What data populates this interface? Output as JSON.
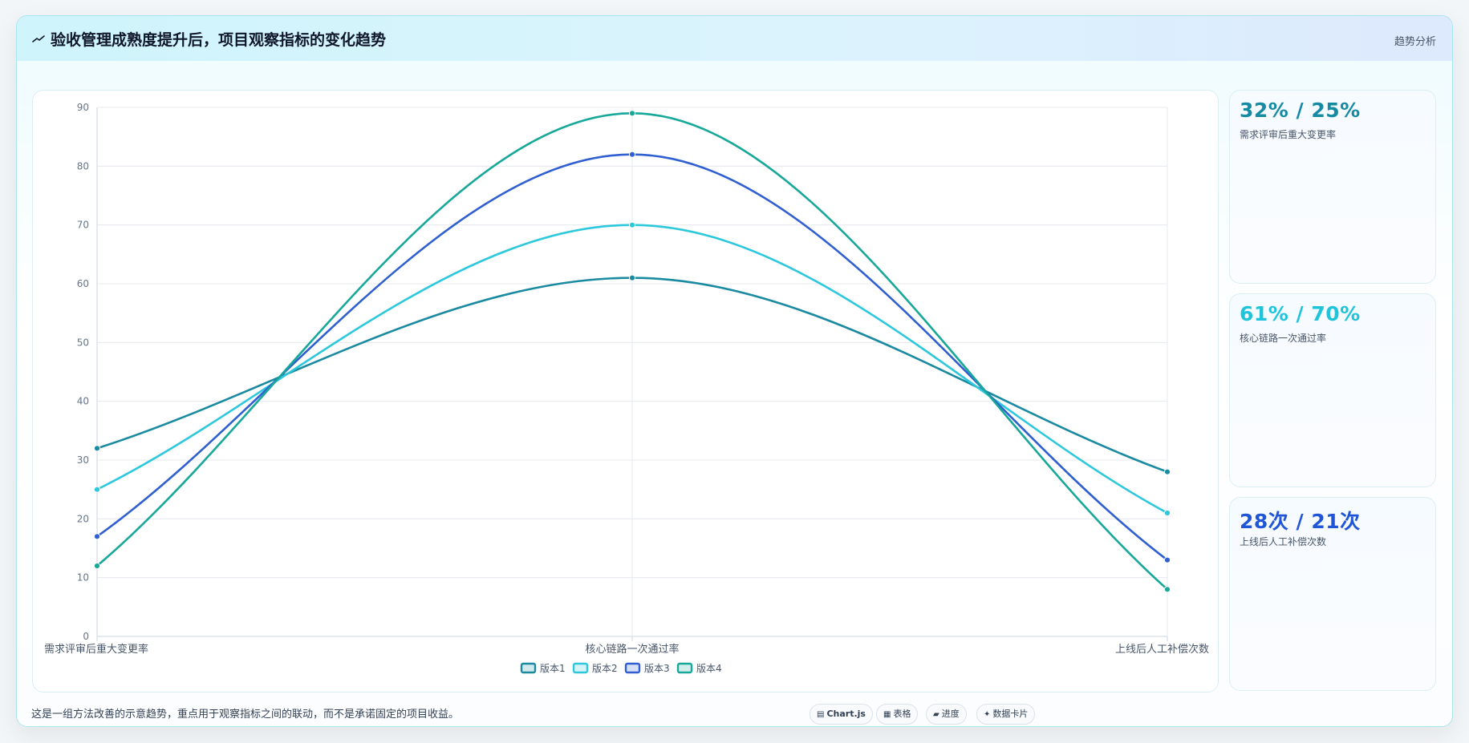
{
  "header": {
    "title": "验收管理成熟度提升后，项目观察指标的变化趋势",
    "badge": "趋势分析",
    "icon": "trend-line-icon"
  },
  "chart_data": {
    "type": "line",
    "title": "",
    "xlabel": "",
    "ylabel": "",
    "categories": [
      "需求评审后重大变更率",
      "核心链路一次通过率",
      "上线后人工补偿次数"
    ],
    "ylim": [
      0,
      90
    ],
    "yticks": [
      0,
      10,
      20,
      30,
      40,
      50,
      60,
      70,
      80,
      90
    ],
    "grid": true,
    "legend": "bottom-center",
    "smooth": true,
    "series": [
      {
        "name": "版本1",
        "values": [
          32,
          61,
          28
        ],
        "color": "#1a8aa0"
      },
      {
        "name": "版本2",
        "values": [
          25,
          70,
          21
        ],
        "color": "#2ec8dd"
      },
      {
        "name": "版本3",
        "values": [
          17,
          82,
          13
        ],
        "color": "#2f5fd0"
      },
      {
        "name": "版本4",
        "values": [
          12,
          89,
          8
        ],
        "color": "#17a89a"
      }
    ]
  },
  "stats": [
    {
      "value": "32% / 25%",
      "label": "需求评审后重大变更率",
      "color": "#158aa3"
    },
    {
      "value": "61% / 70%",
      "label": "核心链路一次通过率",
      "color": "#1fc4da"
    },
    {
      "value": "28次 / 21次",
      "label": "上线后人工补偿次数",
      "color": "#1f55d6"
    }
  ],
  "footer": {
    "note": "这是一组方法改善的示意趋势，重点用于观察指标之间的联动，而不是承诺固定的项目收益。",
    "chips": [
      {
        "icon": "chart-icon",
        "glyph": "▤",
        "label": "Chart.js"
      },
      {
        "icon": "table-icon",
        "glyph": "▦",
        "label": "表格"
      },
      {
        "icon": "progress-icon",
        "glyph": "▰",
        "label": "进度"
      },
      {
        "icon": "card-icon",
        "glyph": "✦",
        "label": "数据卡片"
      }
    ]
  }
}
